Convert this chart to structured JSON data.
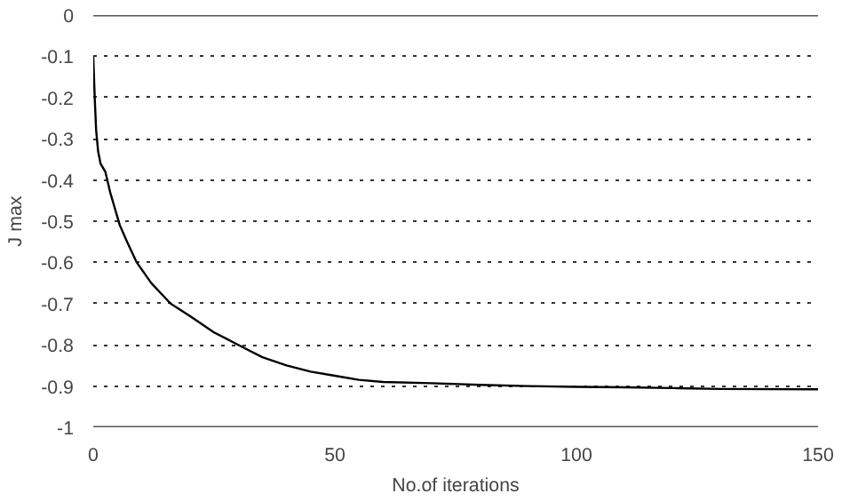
{
  "chart_data": {
    "type": "line",
    "xlabel": "No.of iterations",
    "ylabel": "J max",
    "x": [
      0,
      0.3,
      0.6,
      1,
      1.5,
      2.5,
      3.5,
      4.5,
      5.5,
      7,
      9,
      12,
      16,
      20,
      25,
      30,
      35,
      40,
      45,
      50,
      55,
      60,
      70,
      80,
      90,
      100,
      110,
      120,
      130,
      150
    ],
    "series": [
      {
        "color": "#000000",
        "values": [
          -0.1,
          -0.2,
          -0.28,
          -0.33,
          -0.36,
          -0.38,
          -0.43,
          -0.47,
          -0.51,
          -0.55,
          -0.6,
          -0.65,
          -0.7,
          -0.73,
          -0.77,
          -0.8,
          -0.83,
          -0.85,
          -0.865,
          -0.875,
          -0.885,
          -0.89,
          -0.893,
          -0.897,
          -0.9,
          -0.902,
          -0.903,
          -0.905,
          -0.907,
          -0.908
        ]
      }
    ],
    "xlim": [
      0,
      150
    ],
    "xticks": [
      0,
      50,
      100,
      150
    ],
    "ylim": [
      -1,
      0
    ],
    "yticks": [
      0,
      -0.1,
      -0.2,
      -0.3,
      -0.4,
      -0.5,
      -0.6,
      -0.7,
      -0.8,
      -0.9,
      -1
    ],
    "grid": "y",
    "line_style": "solid"
  }
}
